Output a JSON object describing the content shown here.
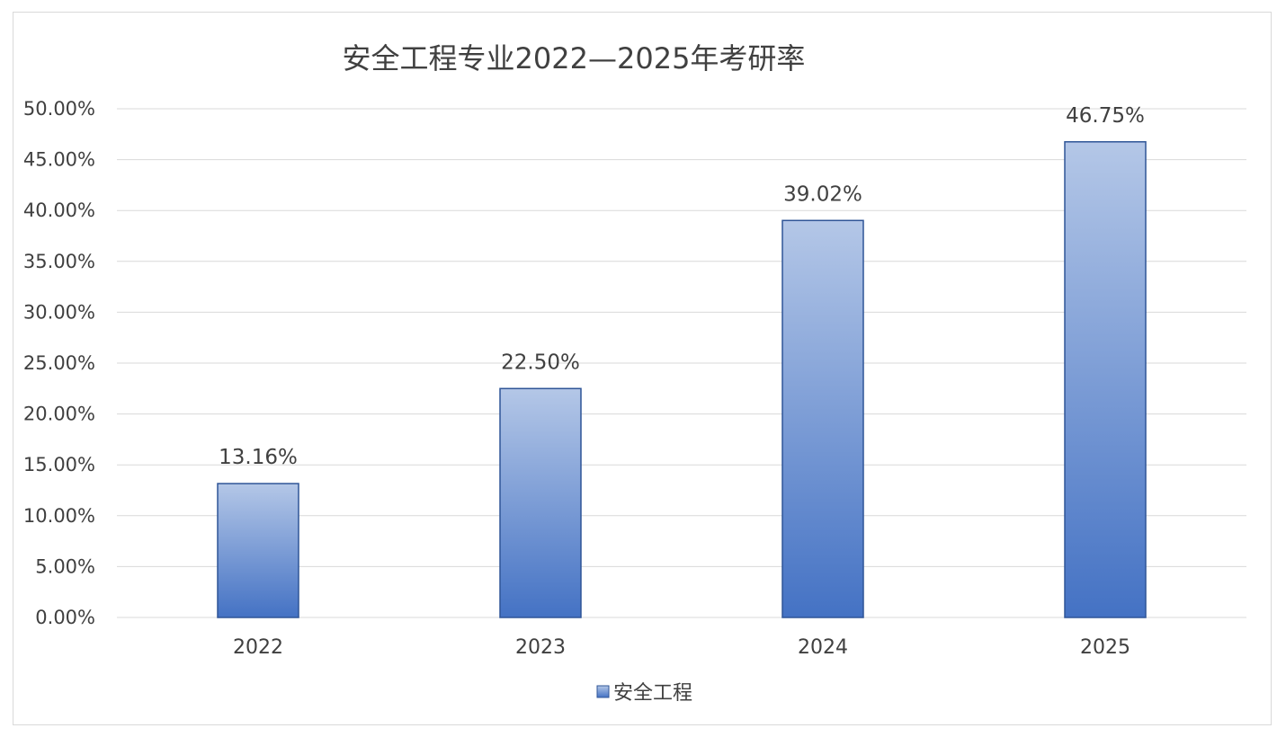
{
  "chart_data": {
    "type": "bar",
    "title": "安全工程专业2022—2025年考研率",
    "categories": [
      "2022",
      "2023",
      "2024",
      "2025"
    ],
    "series": [
      {
        "name": "安全工程",
        "values": [
          13.16,
          22.5,
          39.02,
          46.75
        ],
        "labels": [
          "13.16%",
          "22.50%",
          "39.02%",
          "46.75%"
        ]
      }
    ],
    "ylim": [
      0,
      50
    ],
    "yticks": [
      0,
      5,
      10,
      15,
      20,
      25,
      30,
      35,
      40,
      45,
      50
    ],
    "ytick_labels": [
      "0.00%",
      "5.00%",
      "10.00%",
      "15.00%",
      "20.00%",
      "25.00%",
      "30.00%",
      "35.00%",
      "40.00%",
      "45.00%",
      "50.00%"
    ],
    "grid": true,
    "legend": "bottom",
    "colors": {
      "bar_top": "#b4c7e7",
      "bar_bottom": "#4472c4",
      "bar_border": "#2f5597",
      "grid": "#d9d9d9",
      "text": "#404040"
    }
  }
}
